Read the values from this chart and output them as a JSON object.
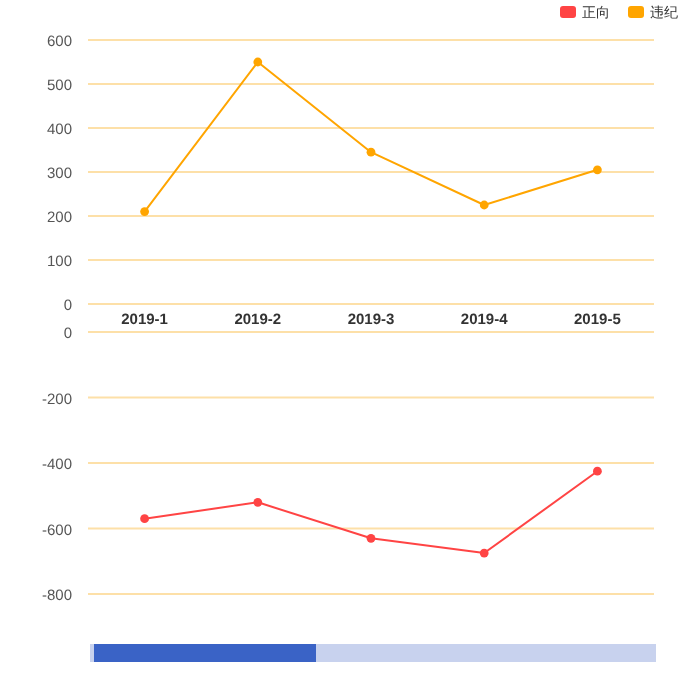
{
  "chart_data": [
    {
      "type": "line",
      "categories": [
        "2019-1",
        "2019-2",
        "2019-3",
        "2019-4",
        "2019-5"
      ],
      "series": [
        {
          "name": "违纪",
          "color": "#ffa500",
          "values": [
            210,
            550,
            345,
            225,
            305
          ]
        }
      ],
      "ylim": [
        0,
        600
      ],
      "yticks": [
        0,
        100,
        200,
        300,
        400,
        500,
        600
      ],
      "grid": "y",
      "legend": "top right",
      "marker": "circle"
    },
    {
      "type": "line",
      "categories": [
        null,
        null,
        null,
        null,
        null
      ],
      "series": [
        {
          "name": "正向",
          "color": "#ff4444",
          "values": [
            -570,
            -520,
            -630,
            -675,
            -425
          ]
        }
      ],
      "ylim": [
        -800,
        0
      ],
      "yticks": [
        -800,
        -600,
        -400,
        -200,
        0
      ],
      "grid": "y",
      "legend": "top right",
      "marker": "circle",
      "tick_labels": "y"
    }
  ]
}
